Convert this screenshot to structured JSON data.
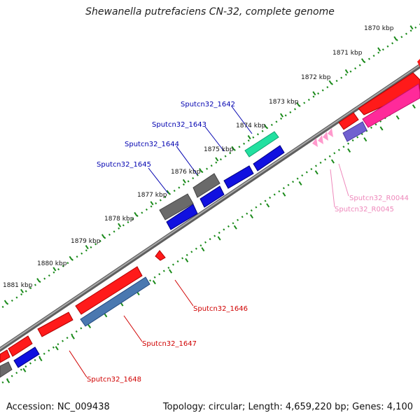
{
  "title": "Shewanella putrefaciens CN-32, complete genome",
  "footer": {
    "accession": "Accession: NC_009438",
    "stats": "Topology: circular; Length: 4,659,220 bp; Genes: 4,100"
  },
  "colors": {
    "backbone": "#8a8a8a",
    "ruler_dots": "#1a8a1a",
    "forward_cds": "#ff1a1a",
    "reverse_cds": "#1010e0",
    "pseudo": "#6a6a6a",
    "rna": "#ff99cc",
    "highlight_teal": "#22e0a0",
    "highlight_steel": "#4a78b0",
    "highlight_magenta": "#ff2a9a",
    "highlight_violet": "#7060d0",
    "label_blue": "#0000b0",
    "label_red": "#d00000",
    "label_pink": "#ee88bb"
  },
  "ticks": [
    "1870 kbp",
    "1871 kbp",
    "1872 kbp",
    "1873 kbp",
    "1874 kbp",
    "1875 kbp",
    "1876 kbp",
    "1877 kbp",
    "1878 kbp",
    "1879 kbp",
    "1880 kbp",
    "1881 kbp"
  ],
  "gene_labels": {
    "g1642": "Sputcn32_1642",
    "g1643": "Sputcn32_1643",
    "g1644": "Sputcn32_1644",
    "g1645": "Sputcn32_1645",
    "g1646": "Sputcn32_1646",
    "g1647": "Sputcn32_1647",
    "g1648": "Sputcn32_1648",
    "r0044": "Sputcn32_R0044",
    "r0045": "Sputcn32_R0045"
  }
}
